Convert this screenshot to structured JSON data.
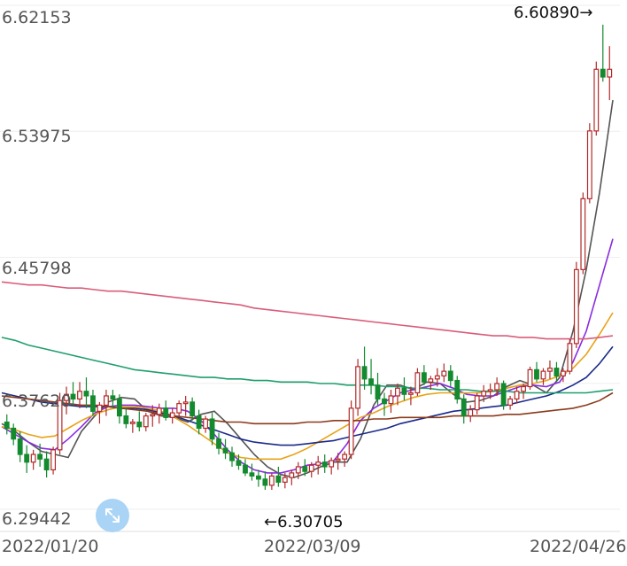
{
  "chart_data": {
    "type": "candlestick",
    "title": "",
    "y_ticks": [
      "6.62153",
      "6.53975",
      "6.45798",
      "6.37620",
      "6.29442"
    ],
    "x_ticks": [
      "2022/01/20",
      "2022/03/09",
      "2022/04/26"
    ],
    "ylim": [
      6.28,
      6.625
    ],
    "annotations": {
      "max": "6.60890→",
      "min": "←6.30705"
    },
    "grid": true,
    "colors": {
      "up": "#b22a2a",
      "down": "#138a2e",
      "ma5": "#555555",
      "ma10": "#8a2be2",
      "ma20": "#e8a317",
      "ma30": "#1a2a8a",
      "ma60": "#8b3a1a",
      "ma120": "#1f9e6e",
      "ma250": "#d95c7a"
    },
    "candles": [
      [
        6.351,
        6.356,
        6.343,
        6.347
      ],
      [
        6.347,
        6.35,
        6.336,
        6.34
      ],
      [
        6.34,
        6.345,
        6.325,
        6.33
      ],
      [
        6.33,
        6.336,
        6.318,
        6.325
      ],
      [
        6.325,
        6.333,
        6.32,
        6.33
      ],
      [
        6.33,
        6.337,
        6.322,
        6.327
      ],
      [
        6.327,
        6.332,
        6.315,
        6.32
      ],
      [
        6.32,
        6.335,
        6.317,
        6.333
      ],
      [
        6.333,
        6.37,
        6.33,
        6.365
      ],
      [
        6.365,
        6.374,
        6.356,
        6.369
      ],
      [
        6.369,
        6.377,
        6.362,
        6.366
      ],
      [
        6.366,
        6.377,
        6.36,
        6.371
      ],
      [
        6.371,
        6.38,
        6.36,
        6.368
      ],
      [
        6.368,
        6.372,
        6.355,
        6.358
      ],
      [
        6.358,
        6.364,
        6.35,
        6.362
      ],
      [
        6.362,
        6.372,
        6.355,
        6.368
      ],
      [
        6.368,
        6.372,
        6.36,
        6.366
      ],
      [
        6.366,
        6.369,
        6.35,
        6.355
      ],
      [
        6.355,
        6.36,
        6.347,
        6.35
      ],
      [
        6.35,
        6.353,
        6.344,
        6.351
      ],
      [
        6.351,
        6.358,
        6.345,
        6.348
      ],
      [
        6.348,
        6.357,
        6.345,
        6.355
      ],
      [
        6.355,
        6.362,
        6.348,
        6.356
      ],
      [
        6.356,
        6.363,
        6.35,
        6.36
      ],
      [
        6.36,
        6.365,
        6.352,
        6.354
      ],
      [
        6.354,
        6.36,
        6.35,
        6.357
      ],
      [
        6.357,
        6.365,
        6.354,
        6.363
      ],
      [
        6.363,
        6.368,
        6.355,
        6.364
      ],
      [
        6.364,
        6.367,
        6.352,
        6.355
      ],
      [
        6.355,
        6.359,
        6.343,
        6.347
      ],
      [
        6.347,
        6.355,
        6.344,
        6.353
      ],
      [
        6.353,
        6.357,
        6.336,
        6.34
      ],
      [
        6.34,
        6.344,
        6.33,
        6.334
      ],
      [
        6.334,
        6.34,
        6.327,
        6.331
      ],
      [
        6.331,
        6.335,
        6.322,
        6.326
      ],
      [
        6.326,
        6.33,
        6.32,
        6.323
      ],
      [
        6.323,
        6.327,
        6.316,
        6.318
      ],
      [
        6.318,
        6.324,
        6.313,
        6.316
      ],
      [
        6.316,
        6.32,
        6.309,
        6.314
      ],
      [
        6.314,
        6.319,
        6.307,
        6.31
      ],
      [
        6.31,
        6.318,
        6.307,
        6.316
      ],
      [
        6.316,
        6.322,
        6.309,
        6.312
      ],
      [
        6.312,
        6.318,
        6.308,
        6.315
      ],
      [
        6.315,
        6.32,
        6.31,
        6.318
      ],
      [
        6.318,
        6.325,
        6.314,
        6.322
      ],
      [
        6.322,
        6.327,
        6.316,
        6.319
      ],
      [
        6.319,
        6.325,
        6.315,
        6.323
      ],
      [
        6.323,
        6.329,
        6.317,
        6.325
      ],
      [
        6.325,
        6.33,
        6.318,
        6.322
      ],
      [
        6.322,
        6.328,
        6.317,
        6.326
      ],
      [
        6.326,
        6.331,
        6.32,
        6.327
      ],
      [
        6.327,
        6.332,
        6.322,
        6.33
      ],
      [
        6.33,
        6.365,
        6.327,
        6.36
      ],
      [
        6.36,
        6.392,
        6.355,
        6.387
      ],
      [
        6.387,
        6.4,
        6.372,
        6.379
      ],
      [
        6.379,
        6.392,
        6.369,
        6.375
      ],
      [
        6.375,
        6.383,
        6.362,
        6.366
      ],
      [
        6.366,
        6.37,
        6.355,
        6.363
      ],
      [
        6.363,
        6.372,
        6.357,
        6.368
      ],
      [
        6.368,
        6.376,
        6.362,
        6.373
      ],
      [
        6.373,
        6.38,
        6.365,
        6.369
      ],
      [
        6.369,
        6.374,
        6.362,
        6.37
      ],
      [
        6.37,
        6.386,
        6.368,
        6.383
      ],
      [
        6.383,
        6.388,
        6.375,
        6.377
      ],
      [
        6.377,
        6.381,
        6.372,
        6.379
      ],
      [
        6.379,
        6.386,
        6.374,
        6.381
      ],
      [
        6.381,
        6.389,
        6.377,
        6.384
      ],
      [
        6.384,
        6.388,
        6.374,
        6.378
      ],
      [
        6.378,
        6.381,
        6.363,
        6.366
      ],
      [
        6.366,
        6.369,
        6.35,
        6.355
      ],
      [
        6.355,
        6.362,
        6.351,
        6.359
      ],
      [
        6.359,
        6.37,
        6.356,
        6.368
      ],
      [
        6.368,
        6.375,
        6.364,
        6.371
      ],
      [
        6.371,
        6.376,
        6.366,
        6.372
      ],
      [
        6.372,
        6.38,
        6.368,
        6.376
      ],
      [
        6.376,
        6.378,
        6.359,
        6.362
      ],
      [
        6.362,
        6.368,
        6.359,
        6.366
      ],
      [
        6.366,
        6.374,
        6.363,
        6.371
      ],
      [
        6.371,
        6.376,
        6.366,
        6.374
      ],
      [
        6.374,
        6.387,
        6.372,
        6.385
      ],
      [
        6.385,
        6.39,
        6.377,
        6.379
      ],
      [
        6.379,
        6.386,
        6.375,
        6.384
      ],
      [
        6.384,
        6.391,
        6.379,
        6.386
      ],
      [
        6.386,
        6.39,
        6.377,
        6.381
      ],
      [
        6.381,
        6.386,
        6.377,
        6.384
      ],
      [
        6.384,
        6.405,
        6.382,
        6.402
      ],
      [
        6.402,
        6.455,
        6.399,
        6.45
      ],
      [
        6.45,
        6.5,
        6.447,
        6.496
      ],
      [
        6.496,
        6.545,
        6.493,
        6.54
      ],
      [
        6.54,
        6.585,
        6.537,
        6.58
      ],
      [
        6.58,
        6.609,
        6.572,
        6.575
      ],
      [
        6.575,
        6.595,
        6.56,
        6.58
      ]
    ],
    "ma_lines": {
      "ma5": [
        6.35,
        6.345,
        6.338,
        6.332,
        6.33,
        6.328,
        6.345,
        6.355,
        6.364,
        6.367,
        6.366,
        6.358,
        6.355,
        6.354,
        6.351,
        6.356,
        6.358,
        6.35,
        6.34,
        6.33,
        6.322,
        6.317,
        6.315,
        6.318,
        6.322,
        6.325,
        6.325,
        6.34,
        6.362,
        6.375,
        6.375,
        6.372,
        6.377,
        6.376,
        6.369,
        6.364,
        6.365,
        6.368,
        6.374,
        6.378,
        6.375,
        6.37,
        6.38,
        6.41,
        6.45,
        6.5,
        6.56
      ],
      "ma10": [
        6.348,
        6.343,
        6.338,
        6.334,
        6.333,
        6.34,
        6.348,
        6.357,
        6.361,
        6.362,
        6.362,
        6.361,
        6.36,
        6.36,
        6.358,
        6.352,
        6.343,
        6.333,
        6.325,
        6.32,
        6.318,
        6.318,
        6.32,
        6.323,
        6.324,
        6.326,
        6.337,
        6.352,
        6.36,
        6.365,
        6.37,
        6.372,
        6.374,
        6.376,
        6.373,
        6.369,
        6.368,
        6.368,
        6.371,
        6.374,
        6.375,
        6.374,
        6.377,
        6.39,
        6.41,
        6.44,
        6.47
      ],
      "ma20": [
        6.348,
        6.346,
        6.343,
        6.341,
        6.342,
        6.347,
        6.352,
        6.356,
        6.359,
        6.361,
        6.361,
        6.36,
        6.358,
        6.354,
        6.349,
        6.343,
        6.337,
        6.331,
        6.328,
        6.327,
        6.327,
        6.327,
        6.33,
        6.334,
        6.339,
        6.344,
        6.349,
        6.354,
        6.357,
        6.361,
        6.364,
        6.367,
        6.369,
        6.37,
        6.37,
        6.37,
        6.37,
        6.371,
        6.373,
        6.375,
        6.376,
        6.378,
        6.381,
        6.386,
        6.395,
        6.408,
        6.422
      ],
      "ma30": [
        6.37,
        6.368,
        6.366,
        6.364,
        6.363,
        6.362,
        6.361,
        6.361,
        6.361,
        6.36,
        6.36,
        6.359,
        6.357,
        6.355,
        6.352,
        6.349,
        6.346,
        6.343,
        6.34,
        6.338,
        6.337,
        6.336,
        6.336,
        6.337,
        6.338,
        6.339,
        6.341,
        6.343,
        6.345,
        6.347,
        6.35,
        6.352,
        6.354,
        6.356,
        6.358,
        6.359,
        6.36,
        6.361,
        6.362,
        6.364,
        6.366,
        6.368,
        6.371,
        6.375,
        6.38,
        6.389,
        6.4
      ],
      "ma60": [
        6.368,
        6.367,
        6.366,
        6.365,
        6.364,
        6.363,
        6.362,
        6.362,
        6.361,
        6.36,
        6.359,
        6.358,
        6.356,
        6.355,
        6.354,
        6.353,
        6.352,
        6.351,
        6.351,
        6.35,
        6.35,
        6.35,
        6.35,
        6.351,
        6.351,
        6.352,
        6.352,
        6.352,
        6.353,
        6.353,
        6.354,
        6.354,
        6.354,
        6.354,
        6.355,
        6.355,
        6.355,
        6.355,
        6.356,
        6.356,
        6.357,
        6.358,
        6.359,
        6.36,
        6.362,
        6.365,
        6.37
      ],
      "ma120": [
        6.406,
        6.404,
        6.401,
        6.399,
        6.397,
        6.395,
        6.393,
        6.391,
        6.389,
        6.387,
        6.385,
        6.384,
        6.383,
        6.382,
        6.381,
        6.38,
        6.38,
        6.379,
        6.379,
        6.378,
        6.378,
        6.377,
        6.377,
        6.377,
        6.376,
        6.376,
        6.375,
        6.375,
        6.375,
        6.374,
        6.374,
        6.373,
        6.373,
        6.372,
        6.372,
        6.372,
        6.371,
        6.371,
        6.371,
        6.37,
        6.37,
        6.37,
        6.37,
        6.37,
        6.37,
        6.371,
        6.372
      ],
      "ma250": [
        6.442,
        6.441,
        6.44,
        6.44,
        6.439,
        6.438,
        6.438,
        6.437,
        6.436,
        6.436,
        6.435,
        6.434,
        6.433,
        6.432,
        6.431,
        6.43,
        6.429,
        6.428,
        6.427,
        6.425,
        6.424,
        6.423,
        6.422,
        6.421,
        6.42,
        6.419,
        6.418,
        6.417,
        6.416,
        6.415,
        6.414,
        6.413,
        6.412,
        6.411,
        6.41,
        6.409,
        6.408,
        6.407,
        6.407,
        6.406,
        6.406,
        6.405,
        6.405,
        6.405,
        6.405,
        6.406,
        6.407
      ]
    }
  }
}
